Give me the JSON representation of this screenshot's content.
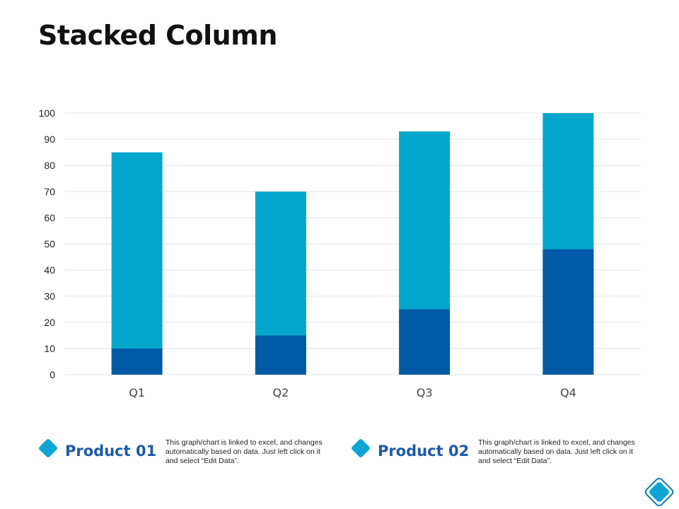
{
  "page": {
    "title": "Stacked Column"
  },
  "colors": {
    "product_01": "#005aa8",
    "product_02": "#04a6cc",
    "legend_name": "#1e5aa8",
    "diamond": "#0ea5d4",
    "grid": "#e3e3e3"
  },
  "chart_data": {
    "type": "bar",
    "stacked": true,
    "categories": [
      "Q1",
      "Q2",
      "Q3",
      "Q4"
    ],
    "series": [
      {
        "name": "Product 01",
        "values": [
          10,
          15,
          25,
          48
        ]
      },
      {
        "name": "Product 02",
        "values": [
          75,
          55,
          68,
          52
        ]
      }
    ],
    "title": "Stacked Column",
    "xlabel": "",
    "ylabel": "",
    "ylim": [
      0,
      100
    ],
    "yticks": [
      0,
      10,
      20,
      30,
      40,
      50,
      60,
      70,
      80,
      90,
      100
    ],
    "grid": true,
    "legend": "bottom"
  },
  "legend": [
    {
      "name": "Product 01",
      "description": "This graph/chart is linked to excel, and changes automatically based on data. Just left click on it and select “Edit Data”."
    },
    {
      "name": "Product 02",
      "description": "This graph/chart is linked to excel, and changes automatically based on data. Just left click on it and select “Edit Data”."
    }
  ],
  "icons": {
    "corner": "diamond-icon"
  }
}
